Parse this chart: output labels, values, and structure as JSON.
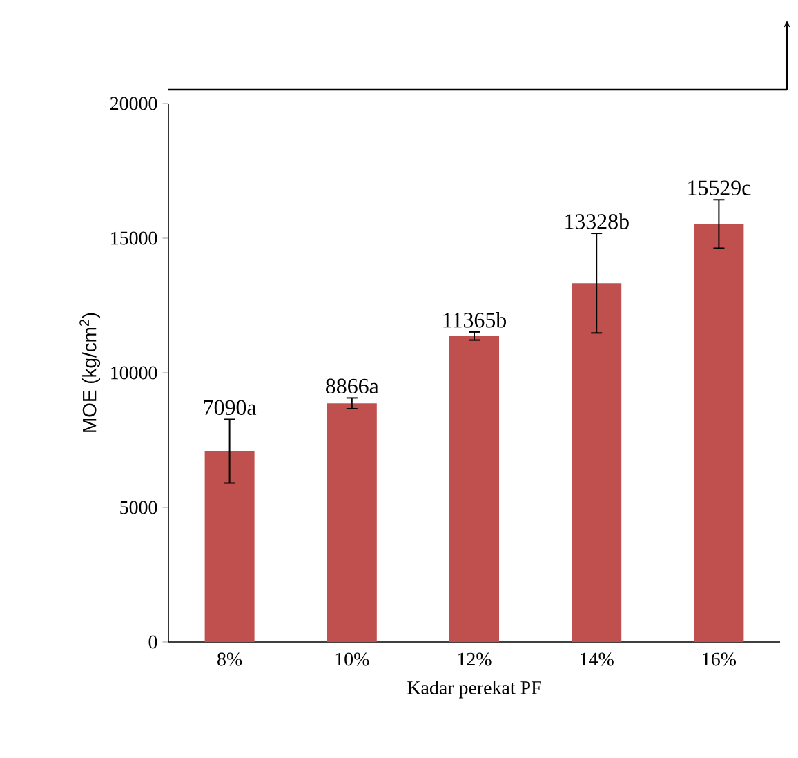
{
  "chart_data": {
    "type": "bar",
    "xlabel": "Kadar perekat PF",
    "ylabel": "MOE (kg/cm$^{2}$)",
    "categories": [
      "8%",
      "10%",
      "12%",
      "14%",
      "16%"
    ],
    "values": [
      7090,
      8866,
      11365,
      13328,
      15529
    ],
    "errors": [
      1180,
      200,
      150,
      1850,
      900
    ],
    "value_labels": [
      "7090a",
      "8866a",
      "11365b",
      "13328b",
      "15529c"
    ],
    "color": "#c0504d",
    "ylim": [
      0,
      20000
    ],
    "yticks": [
      0,
      5000,
      10000,
      15000,
      20000
    ]
  }
}
